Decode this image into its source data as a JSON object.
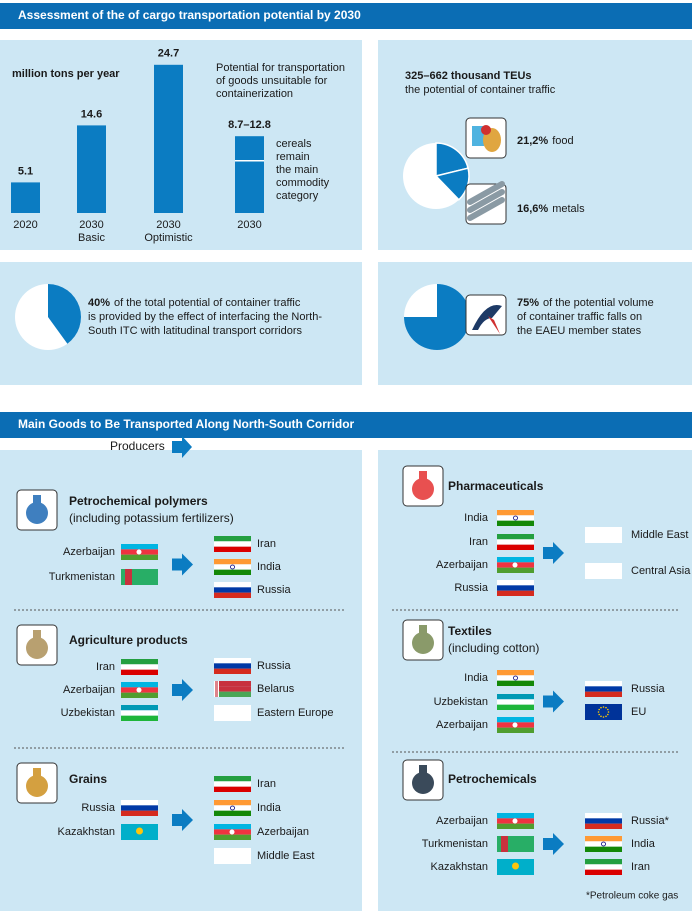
{
  "assessment": {
    "title": "Assessment of the of cargo transportation potential by 2030",
    "unit": "million tons per year",
    "bars": [
      {
        "value": 5.1,
        "category": [
          "2020"
        ]
      },
      {
        "value": 14.6,
        "category": [
          "2030",
          "Basic"
        ]
      },
      {
        "value": 24.7,
        "category": [
          "2030",
          "Optimistic"
        ]
      },
      {
        "low": 8.7,
        "high": 12.8,
        "label": "8.7–12.8",
        "category": [
          "2030"
        ]
      }
    ],
    "note": [
      "Potential for transportation",
      "of goods unsuitable for",
      "containerization"
    ],
    "bar_note": [
      "cereals",
      "remain",
      "the main",
      "commodity",
      "category"
    ],
    "teu": {
      "title": "325–662 thousand TEUs",
      "subtitle": "the potential of container traffic",
      "slices": [
        {
          "value": 21.2,
          "label": "21,2%",
          "name": "food"
        },
        {
          "value": 16.6,
          "label": "16,6%",
          "name": "metals"
        }
      ]
    },
    "shares": [
      {
        "value": 40,
        "label": "40%",
        "text": [
          "of the total potential of container traffic",
          "is provided by the effect of interfacing the North-",
          "South ITC with latitudinal transport corridors"
        ]
      },
      {
        "value": 75,
        "label": "75%",
        "text": [
          "of the potential volume",
          "of container traffic falls on",
          "the EAEU member states"
        ]
      }
    ]
  },
  "goods": {
    "title": "Main Goods to Be Transported Along North-South Corridor",
    "producers_label": "Producers",
    "groups": [
      {
        "name": "Petrochemical polymers",
        "subname": "(including potassium fertilizers)",
        "from": [
          "Azerbaijan",
          "Turkmenistan"
        ],
        "to": [
          "Iran",
          "India",
          "Russia"
        ]
      },
      {
        "name": "Agriculture products",
        "from": [
          "Iran",
          "Azerbaijan",
          "Uzbekistan"
        ],
        "to": [
          "Russia",
          "Belarus",
          "Eastern Europe"
        ]
      },
      {
        "name": "Grains",
        "from": [
          "Russia",
          "Kazakhstan"
        ],
        "to": [
          "Iran",
          "India",
          "Azerbaijan",
          "Middle East"
        ]
      },
      {
        "name": "Pharmaceuticals",
        "from": [
          "India",
          "Iran",
          "Azerbaijan",
          "Russia"
        ],
        "to": [
          "Middle East",
          "Central Asia"
        ]
      },
      {
        "name": "Textiles",
        "subname": "(including cotton)",
        "from": [
          "India",
          "Uzbekistan",
          "Azerbaijan"
        ],
        "to": [
          "Russia",
          "EU"
        ]
      },
      {
        "name": "Petrochemicals",
        "from": [
          "Azerbaijan",
          "Turkmenistan",
          "Kazakhstan"
        ],
        "to": [
          "Russia*",
          "India",
          "Iran"
        ]
      }
    ],
    "footnote": "*Petroleum coke gas"
  }
}
